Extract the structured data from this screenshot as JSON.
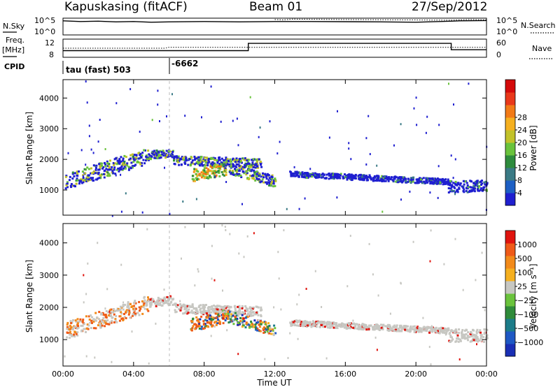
{
  "header": {
    "station": "Kapuskasing (fitACF)",
    "beam": "Beam 01",
    "date": "27/Sep/2012"
  },
  "side_labels": {
    "nsky": "N.Sky",
    "freq": "Freq.",
    "mhz": "[MHz]",
    "cpid": "CPID",
    "nsearch": "N.Search",
    "nave": "Nave"
  },
  "cpid_labels": {
    "first": "tau (fast) 503",
    "second": "-6662"
  },
  "chart_data": [
    {
      "type": "line",
      "panel": "N.Sky / N.Search",
      "y_left_ticks": [
        "10^5",
        "10^0"
      ],
      "y_right_ticks": [
        "10^5",
        "10^0"
      ],
      "series": [
        {
          "name": "N.Sky",
          "x": [
            0,
            1,
            2,
            3,
            4,
            5,
            6,
            8,
            10,
            12,
            13.6,
            14,
            18,
            20,
            22,
            22.5,
            24
          ],
          "values": [
            4.2,
            4.0,
            4.1,
            3.9,
            4.0,
            3.8,
            3.9,
            4.0,
            3.9,
            4.0,
            4.0,
            4.0,
            3.9,
            3.8,
            4.1,
            4.2,
            4.3
          ]
        },
        {
          "name": "N.Search",
          "x": [
            12,
            12.5,
            13,
            22,
            23,
            24
          ],
          "values": [
            4.6,
            4.5,
            4.7,
            4.4,
            4.6,
            4.5
          ]
        }
      ]
    },
    {
      "type": "line",
      "panel": "Freq / Nave",
      "y_left_ticks": [
        "12",
        "8"
      ],
      "y_right_ticks": [
        "60",
        "0"
      ],
      "series": [
        {
          "name": "Freq.",
          "x": [
            0,
            6,
            6,
            10.5,
            10.5,
            22,
            22,
            24
          ],
          "values": [
            10.2,
            10.2,
            10.2,
            10.2,
            12.6,
            12.6,
            10.5,
            10.5
          ]
        },
        {
          "name": "Nave",
          "x": [
            0,
            5.8,
            6,
            24
          ],
          "values": [
            30,
            30,
            33,
            33
          ]
        }
      ]
    },
    {
      "type": "heatmap",
      "panel": "Power",
      "ylabel": "Slant Range [km]",
      "xlabel": "Time UT",
      "x_ticks": [
        "00:00",
        "04:00",
        "08:00",
        "12:00",
        "16:00",
        "20:00",
        "00:00"
      ],
      "y_ticks": [
        1000,
        2000,
        3000,
        4000
      ],
      "ylim": [
        180,
        4600
      ],
      "xlim": [
        0,
        24
      ],
      "colorbar": {
        "label": "Power [dB]",
        "ticks": [
          "4",
          "8",
          "12",
          "16",
          "20",
          "24",
          "28"
        ],
        "colors": [
          "#1f1fd0",
          "#1d5fc4",
          "#3a7a85",
          "#2e8b3d",
          "#6ac33c",
          "#c2c22a",
          "#f5b020",
          "#f27a17",
          "#e9381a",
          "#d40a0a"
        ]
      }
    },
    {
      "type": "heatmap",
      "panel": "Velocity",
      "ylabel": "Slant Range [km]",
      "xlabel": "Time UT",
      "x_ticks": [
        "00:00",
        "04:00",
        "08:00",
        "12:00",
        "16:00",
        "20:00",
        "00:00"
      ],
      "y_ticks": [
        1000,
        2000,
        3000,
        4000
      ],
      "ylim": [
        180,
        4600
      ],
      "xlim": [
        0,
        24
      ],
      "colorbar": {
        "label": "Velocity [m s⁻¹]",
        "ticks": [
          "1000",
          "500",
          "100",
          "25",
          "−25",
          "−100",
          "−500",
          "−1000"
        ],
        "colors": [
          "#1a2fb5",
          "#1e58c4",
          "#1c7c89",
          "#2f8b3a",
          "#6ac33c",
          "#c7c7c2",
          "#f5b020",
          "#f28a1a",
          "#ef5a18",
          "#e0140e"
        ]
      }
    }
  ]
}
